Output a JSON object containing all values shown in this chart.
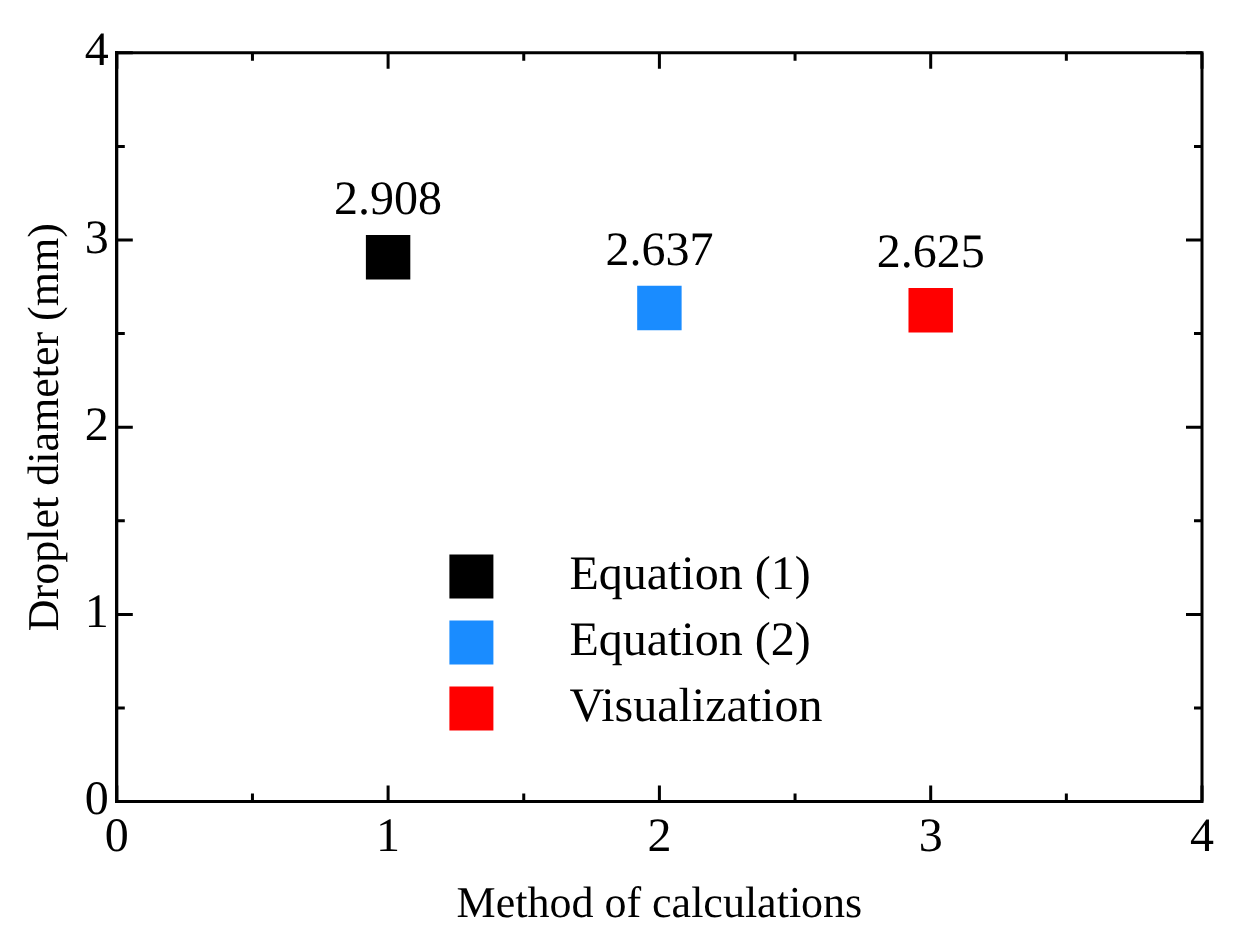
{
  "chart_data": {
    "type": "scatter",
    "xlabel": "Method of calculations",
    "ylabel": "Droplet diameter (mm)",
    "xlim": [
      0,
      4
    ],
    "ylim": [
      0,
      4
    ],
    "xticks": [
      0,
      1,
      2,
      3,
      4
    ],
    "yticks": [
      0,
      1,
      2,
      3,
      4
    ],
    "grid": false,
    "legend": "bottom",
    "marker": "square",
    "data_labels": true,
    "series": [
      {
        "name": "Equation (1)",
        "color": "#000000",
        "x": [
          1
        ],
        "values": [
          2.908
        ]
      },
      {
        "name": "Equation (2)",
        "color": "#1a8cff",
        "x": [
          2
        ],
        "values": [
          2.637
        ]
      },
      {
        "name": "Visualization",
        "color": "#ff0000",
        "x": [
          3
        ],
        "values": [
          2.625
        ]
      }
    ]
  }
}
